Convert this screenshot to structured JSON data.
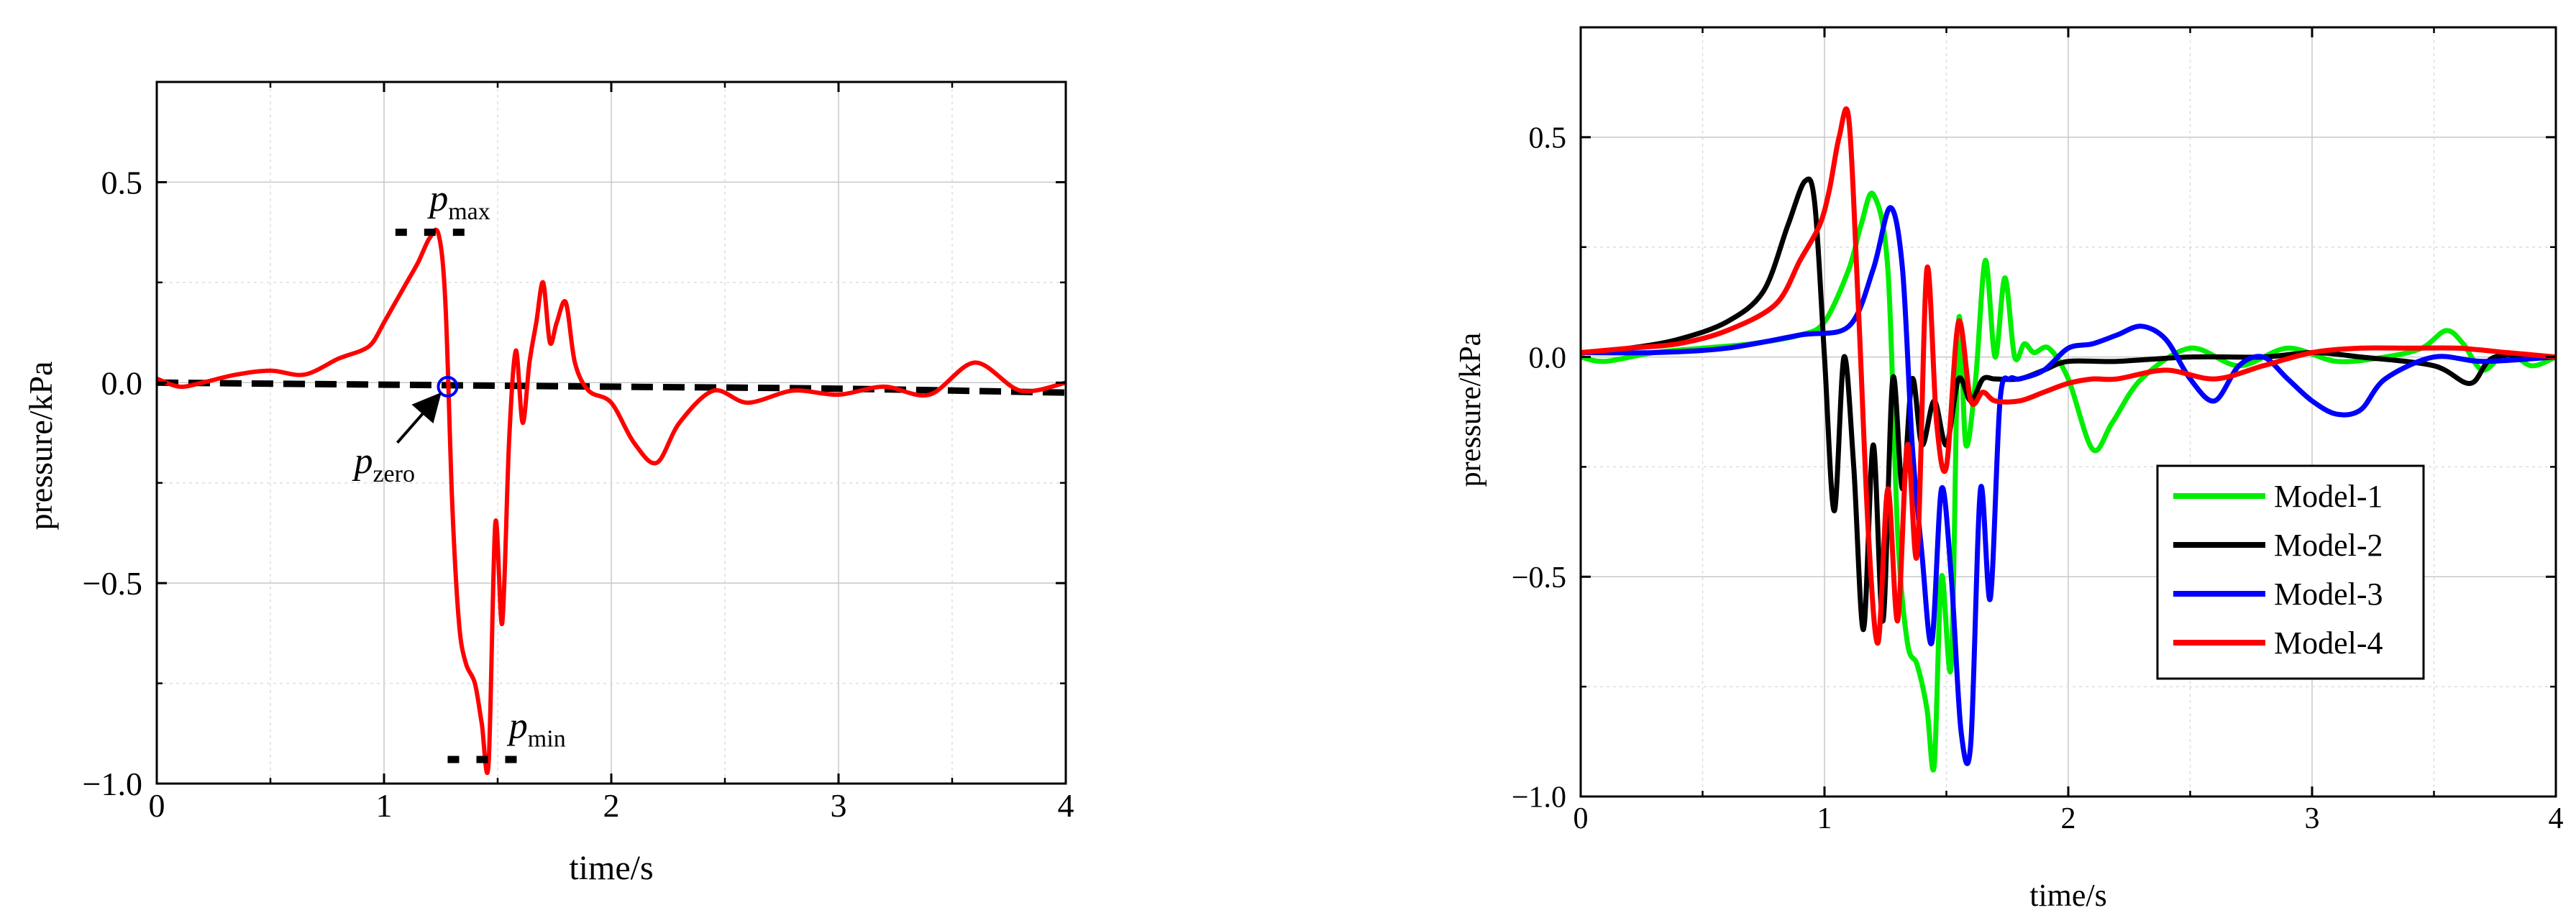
{
  "chart_data": [
    {
      "type": "line",
      "xlabel": "time/s",
      "ylabel": "pressure/kPa",
      "xlim": [
        0,
        4
      ],
      "ylim": [
        -1.0,
        0.75
      ],
      "xticks": [
        0,
        1,
        2,
        3,
        4
      ],
      "xtick_labels": [
        "0",
        "1",
        "2",
        "3",
        "4"
      ],
      "yticks": [
        -1.0,
        -0.5,
        0.0,
        0.5
      ],
      "ytick_labels": [
        "−1.0",
        "−0.5",
        "0.0",
        "0.5"
      ],
      "grid": true,
      "colors": {
        "signal": "#ff0000",
        "reference": "#000000",
        "marker": "#0000ff"
      },
      "series": [
        {
          "x": [
            0,
            0.1,
            0.2,
            0.35,
            0.5,
            0.65,
            0.8,
            0.9,
            0.95,
            1.0,
            1.05,
            1.1,
            1.15,
            1.2,
            1.24,
            1.27,
            1.3,
            1.33,
            1.36,
            1.4,
            1.43,
            1.46,
            1.49,
            1.52,
            1.55,
            1.58,
            1.61,
            1.64,
            1.67,
            1.7,
            1.73,
            1.76,
            1.8,
            1.84,
            1.9,
            2.0,
            2.1,
            2.2,
            2.3,
            2.45,
            2.6,
            2.8,
            3.0,
            3.2,
            3.4,
            3.6,
            3.8,
            4.0
          ],
          "y": [
            0.01,
            -0.01,
            0.0,
            0.02,
            0.03,
            0.02,
            0.06,
            0.08,
            0.1,
            0.15,
            0.2,
            0.25,
            0.3,
            0.36,
            0.37,
            0.2,
            -0.3,
            -0.6,
            -0.7,
            -0.75,
            -0.85,
            -0.95,
            -0.35,
            -0.6,
            -0.15,
            0.08,
            -0.1,
            0.05,
            0.15,
            0.25,
            0.1,
            0.15,
            0.2,
            0.05,
            -0.02,
            -0.05,
            -0.15,
            -0.2,
            -0.1,
            -0.02,
            -0.05,
            -0.02,
            -0.03,
            -0.01,
            -0.03,
            0.05,
            -0.02,
            0.0
          ]
        },
        {
          "x": [
            0,
            1.0,
            2.0,
            3.0,
            4.0
          ],
          "y": [
            0.0,
            -0.005,
            -0.01,
            -0.015,
            -0.025
          ]
        }
      ],
      "annotations": [
        {
          "label_main": "p",
          "label_sub": "max",
          "y": 0.375,
          "x_range": [
            1.05,
            1.42
          ]
        },
        {
          "label_main": "p",
          "label_sub": "min",
          "y": -0.94,
          "x_range": [
            1.28,
            1.64
          ]
        },
        {
          "label_main": "p",
          "label_sub": "zero",
          "point": [
            1.28,
            -0.01
          ]
        }
      ]
    },
    {
      "type": "line",
      "xlabel": "time/s",
      "ylabel": "pressure/kPa",
      "xlim": [
        0,
        4
      ],
      "ylim": [
        -1.0,
        0.75
      ],
      "xticks": [
        0,
        1,
        2,
        3,
        4
      ],
      "xtick_labels": [
        "0",
        "1",
        "2",
        "3",
        "4"
      ],
      "yticks": [
        -1.0,
        -0.5,
        0.0,
        0.5
      ],
      "ytick_labels": [
        "−1.0",
        "−0.5",
        "0.0",
        "0.5"
      ],
      "grid": true,
      "legend": {
        "placement": "lower-right"
      },
      "series": [
        {
          "name": "Model-1",
          "color": "#00ee00",
          "x": [
            0,
            0.1,
            0.3,
            0.5,
            0.7,
            0.9,
            1.0,
            1.1,
            1.15,
            1.2,
            1.26,
            1.3,
            1.34,
            1.38,
            1.42,
            1.45,
            1.48,
            1.52,
            1.55,
            1.58,
            1.62,
            1.66,
            1.7,
            1.74,
            1.78,
            1.82,
            1.86,
            1.92,
            2.0,
            2.1,
            2.18,
            2.3,
            2.5,
            2.7,
            2.9,
            3.1,
            3.3,
            3.45,
            3.55,
            3.62,
            3.7,
            3.8,
            3.9,
            4.0
          ],
          "y": [
            0.0,
            -0.01,
            0.01,
            0.02,
            0.03,
            0.05,
            0.08,
            0.2,
            0.3,
            0.37,
            0.2,
            -0.4,
            -0.65,
            -0.7,
            -0.8,
            -0.93,
            -0.5,
            -0.7,
            0.08,
            -0.2,
            -0.05,
            0.22,
            0.0,
            0.18,
            0.0,
            0.03,
            0.01,
            0.02,
            -0.05,
            -0.21,
            -0.15,
            -0.05,
            0.02,
            -0.02,
            0.02,
            -0.01,
            0.0,
            0.02,
            0.06,
            0.03,
            -0.03,
            0.01,
            -0.02,
            0.0
          ]
        },
        {
          "name": "Model-2",
          "color": "#000000",
          "x": [
            0,
            0.2,
            0.4,
            0.6,
            0.75,
            0.85,
            0.92,
            0.96,
            1.0,
            1.04,
            1.08,
            1.12,
            1.16,
            1.2,
            1.24,
            1.28,
            1.32,
            1.36,
            1.4,
            1.45,
            1.5,
            1.55,
            1.6,
            1.65,
            1.7,
            1.8,
            1.9,
            2.0,
            2.2,
            2.5,
            2.8,
            3.0,
            3.2,
            3.5,
            3.65,
            3.75,
            4.0
          ],
          "y": [
            0.01,
            0.02,
            0.04,
            0.08,
            0.15,
            0.3,
            0.4,
            0.35,
            0.0,
            -0.35,
            0.0,
            -0.25,
            -0.62,
            -0.2,
            -0.6,
            -0.05,
            -0.3,
            -0.05,
            -0.2,
            -0.1,
            -0.2,
            -0.05,
            -0.1,
            -0.05,
            -0.05,
            -0.05,
            -0.03,
            -0.01,
            -0.01,
            0.0,
            0.0,
            0.01,
            0.0,
            -0.02,
            -0.06,
            0.0,
            0.0
          ]
        },
        {
          "name": "Model-3",
          "color": "#0000ff",
          "x": [
            0,
            0.3,
            0.6,
            0.9,
            1.1,
            1.2,
            1.27,
            1.32,
            1.36,
            1.4,
            1.44,
            1.48,
            1.52,
            1.56,
            1.6,
            1.64,
            1.68,
            1.72,
            1.76,
            1.8,
            1.9,
            2.0,
            2.1,
            2.2,
            2.3,
            2.4,
            2.5,
            2.6,
            2.7,
            2.8,
            2.9,
            3.0,
            3.1,
            3.2,
            3.3,
            3.5,
            3.7,
            4.0
          ],
          "y": [
            0.01,
            0.01,
            0.02,
            0.05,
            0.07,
            0.2,
            0.34,
            0.2,
            -0.2,
            -0.45,
            -0.65,
            -0.3,
            -0.5,
            -0.85,
            -0.88,
            -0.3,
            -0.55,
            -0.1,
            -0.05,
            -0.05,
            -0.03,
            0.02,
            0.03,
            0.05,
            0.07,
            0.04,
            -0.05,
            -0.1,
            -0.02,
            0.0,
            -0.05,
            -0.1,
            -0.13,
            -0.12,
            -0.05,
            0.0,
            -0.01,
            0.0
          ]
        },
        {
          "name": "Model-4",
          "color": "#ff0000",
          "x": [
            0,
            0.2,
            0.4,
            0.6,
            0.8,
            0.9,
            0.98,
            1.02,
            1.06,
            1.1,
            1.14,
            1.18,
            1.22,
            1.26,
            1.3,
            1.34,
            1.38,
            1.42,
            1.46,
            1.5,
            1.55,
            1.6,
            1.65,
            1.7,
            1.8,
            1.9,
            2.0,
            2.1,
            2.2,
            2.4,
            2.6,
            2.8,
            3.0,
            3.2,
            3.4,
            3.6,
            3.8,
            4.0
          ],
          "y": [
            0.01,
            0.02,
            0.03,
            0.06,
            0.12,
            0.22,
            0.3,
            0.38,
            0.5,
            0.54,
            0.1,
            -0.4,
            -0.65,
            -0.3,
            -0.6,
            -0.2,
            -0.45,
            0.2,
            -0.15,
            -0.25,
            0.08,
            -0.1,
            -0.08,
            -0.1,
            -0.1,
            -0.08,
            -0.06,
            -0.05,
            -0.05,
            -0.03,
            -0.05,
            -0.02,
            0.01,
            0.02,
            0.02,
            0.02,
            0.01,
            0.0
          ]
        }
      ]
    }
  ]
}
